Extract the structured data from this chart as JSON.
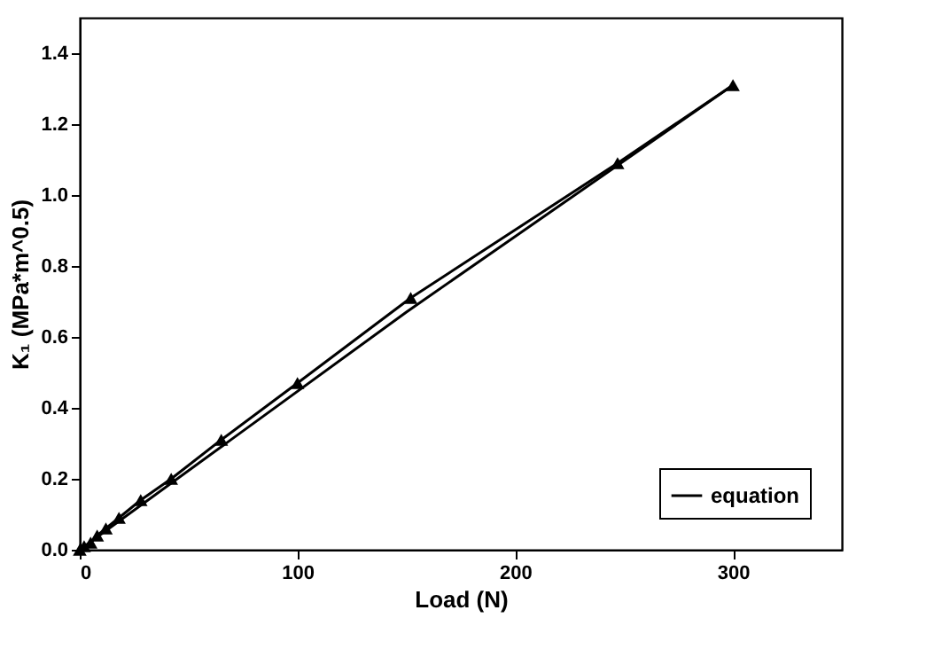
{
  "chart_data": {
    "type": "line",
    "xlabel": "Load (N)",
    "ylabel": "K₁ (MPa*m^0.5)",
    "xlim": [
      0,
      350
    ],
    "ylim": [
      0,
      1.5
    ],
    "xticks": [
      0,
      100,
      200,
      300
    ],
    "yticks": [
      {
        "value": 0,
        "label": "0.0"
      },
      {
        "value": 0.2,
        "label": "0.2"
      },
      {
        "value": 0.4,
        "label": "0.4"
      },
      {
        "value": 0.6,
        "label": "0.6"
      },
      {
        "value": 0.8,
        "label": "0.8"
      },
      {
        "value": 1.0,
        "label": "1.0"
      },
      {
        "value": 1.2,
        "label": "1.2"
      },
      {
        "value": 1.4,
        "label": "1.4"
      }
    ],
    "legend": "bottom right",
    "series": [
      {
        "color": "#000000",
        "marker": "triangle",
        "x": [
          0,
          2,
          5,
          8,
          12,
          18,
          28,
          42,
          65,
          100,
          152,
          247,
          300
        ],
        "values": [
          0,
          0.01,
          0.02,
          0.04,
          0.06,
          0.09,
          0.14,
          0.2,
          0.31,
          0.47,
          0.71,
          1.09,
          1.31
        ]
      },
      {
        "name": "equation",
        "color": "#000000",
        "marker": "none",
        "x": [
          0,
          150,
          300
        ],
        "values": [
          0,
          0.67,
          1.31
        ]
      }
    ]
  }
}
